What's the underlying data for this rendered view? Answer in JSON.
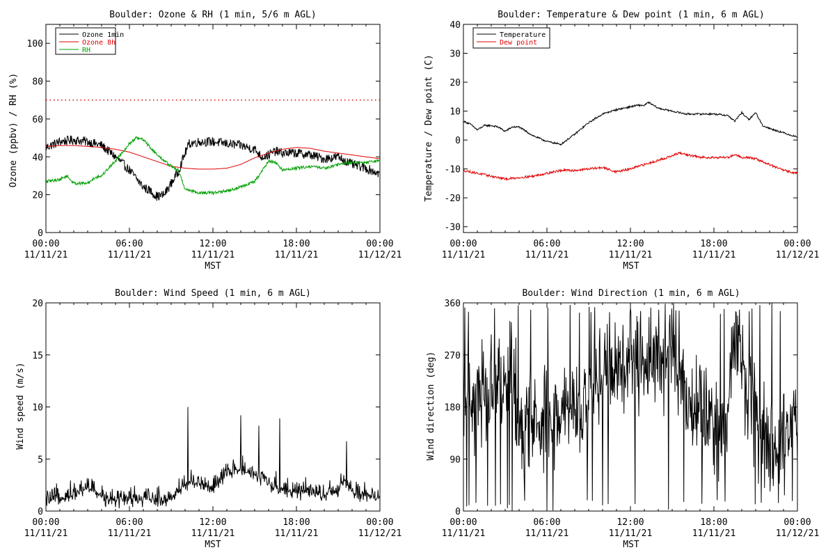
{
  "colors": {
    "black": "#000000",
    "red": "#e00000",
    "green": "#00a000"
  },
  "x_ticks": [
    {
      "hour": 0,
      "time": "00:00",
      "date": "11/11/21"
    },
    {
      "hour": 6,
      "time": "06:00",
      "date": "11/11/21"
    },
    {
      "hour": 12,
      "time": "12:00",
      "date": "11/11/21"
    },
    {
      "hour": 18,
      "time": "18:00",
      "date": "11/11/21"
    },
    {
      "hour": 24,
      "time": "00:00",
      "date": "11/12/21"
    }
  ],
  "chart_data": [
    {
      "id": "ozone",
      "type": "line",
      "title": "Boulder: Ozone & RH (1 min, 5/6 m AGL)",
      "ylabel": "Ozone (ppbv) / RH (%)",
      "xlabel": "MST",
      "xlim": [
        0,
        24
      ],
      "ylim": [
        0,
        110
      ],
      "yticks": [
        0,
        20,
        40,
        60,
        80,
        100
      ],
      "reference_line": {
        "y": 70,
        "color": "#e00000",
        "style": "dotted"
      },
      "legend": "top-left",
      "legend_entries": [
        "Ozone 1min",
        "Ozone 8h",
        "RH"
      ],
      "series": [
        {
          "name": "Ozone 1min",
          "color": "#000000",
          "noise": 2.5,
          "x": [
            0,
            1,
            2,
            3,
            4,
            5,
            6,
            7,
            7.5,
            8,
            8.5,
            9,
            9.5,
            10,
            10.3,
            11,
            12,
            13,
            14,
            15,
            15.5,
            16,
            16.5,
            17,
            18,
            19,
            20,
            21,
            22,
            23,
            24
          ],
          "y": [
            45,
            48,
            49,
            48,
            46,
            40,
            33,
            24,
            22,
            19,
            20,
            26,
            32,
            42,
            47,
            48,
            48,
            47,
            46,
            44,
            40,
            41,
            43,
            42,
            42,
            41,
            39,
            40,
            36,
            34,
            31
          ]
        },
        {
          "name": "Ozone 8h",
          "color": "#e00000",
          "noise": 0,
          "x": [
            0,
            1,
            2,
            3,
            4,
            5,
            6,
            7,
            8,
            9,
            10,
            11,
            12,
            13,
            14,
            15,
            16,
            17,
            18,
            19,
            20,
            21,
            22,
            23,
            24
          ],
          "y": [
            45.5,
            46,
            46,
            45.5,
            45,
            44,
            42.5,
            40,
            37.5,
            35,
            34,
            33.5,
            33.5,
            34,
            36,
            39.5,
            42,
            44,
            45,
            44.5,
            43,
            42,
            41,
            40,
            39
          ]
        },
        {
          "name": "RH",
          "color": "#00a000",
          "noise": 0.8,
          "x": [
            0,
            1,
            1.5,
            2,
            3,
            3.5,
            4,
            5,
            6,
            6.5,
            7,
            7.5,
            8,
            9,
            9.5,
            10,
            11,
            12,
            13,
            14,
            15,
            15.5,
            16,
            16.5,
            17,
            18,
            19,
            20,
            21,
            22,
            23,
            24
          ],
          "y": [
            27,
            28,
            30,
            26,
            26,
            29,
            30,
            38,
            47,
            50,
            49,
            45,
            41,
            35,
            33,
            23,
            21,
            21,
            22,
            24,
            27,
            32,
            38,
            37,
            33,
            34,
            35,
            34,
            36,
            37,
            37,
            38
          ]
        }
      ]
    },
    {
      "id": "temperature",
      "type": "line",
      "title": "Boulder: Temperature & Dew point (1 min, 6 m AGL)",
      "ylabel": "Temperature / Dew point (C)",
      "xlabel": "MST",
      "xlim": [
        0,
        24
      ],
      "ylim": [
        -32,
        40
      ],
      "yticks": [
        -30,
        -20,
        -10,
        0,
        10,
        20,
        30,
        40
      ],
      "legend": "top-left",
      "legend_entries": [
        "Temperature",
        "Dew point"
      ],
      "series": [
        {
          "name": "Temperature",
          "color": "#000000",
          "noise": 0.3,
          "x": [
            0,
            0.5,
            1,
            1.5,
            2,
            2.5,
            3,
            3.5,
            4,
            5,
            6,
            7,
            8,
            9,
            10,
            11,
            12,
            12.5,
            13,
            13.3,
            14,
            15,
            16,
            17,
            18,
            19,
            19.5,
            20,
            20.5,
            21,
            21.5,
            22,
            23,
            24
          ],
          "y": [
            6.5,
            5.5,
            3.5,
            5,
            5,
            4.5,
            3,
            4.5,
            4.5,
            1.5,
            -0.5,
            -1.5,
            2,
            6,
            9,
            10.5,
            11.5,
            12,
            12,
            13,
            11,
            10,
            9,
            9,
            9,
            8.5,
            6.5,
            9.5,
            7,
            9.5,
            5,
            4,
            2.5,
            1
          ]
        },
        {
          "name": "Dew point",
          "color": "#e00000",
          "noise": 0.4,
          "x": [
            0,
            1,
            2,
            3,
            4,
            5,
            6,
            7,
            8,
            9,
            10,
            11,
            12,
            13,
            14,
            15,
            15.5,
            16,
            17,
            18,
            19,
            19.5,
            20,
            20.5,
            21,
            22,
            23,
            24
          ],
          "y": [
            -10.5,
            -11.5,
            -12.5,
            -13.5,
            -13,
            -12.5,
            -11.5,
            -10.5,
            -10.5,
            -10,
            -9.5,
            -11,
            -10,
            -8.5,
            -7,
            -5.5,
            -4.5,
            -5,
            -6,
            -6,
            -6,
            -5,
            -6,
            -6,
            -6.5,
            -8.5,
            -10.5,
            -11.5
          ]
        }
      ]
    },
    {
      "id": "windspeed",
      "type": "line",
      "title": "Boulder: Wind Speed (1 min, 6 m AGL)",
      "ylabel": "Wind speed (m/s)",
      "xlabel": "MST",
      "xlim": [
        0,
        24
      ],
      "ylim": [
        0,
        20
      ],
      "yticks": [
        0,
        5,
        10,
        15,
        20
      ],
      "legend": "none",
      "series": [
        {
          "name": "Wind speed",
          "color": "#000000",
          "noise": 1.3,
          "x": [
            0,
            1,
            2,
            3,
            4,
            5,
            6,
            7,
            8,
            9,
            10,
            11,
            12,
            13,
            14,
            15,
            16,
            17,
            18,
            19,
            20,
            21,
            21.5,
            22,
            23,
            24
          ],
          "y": [
            0.7,
            1.2,
            1.5,
            2.2,
            1.3,
            1,
            1.1,
            1,
            1,
            1.1,
            2.5,
            2.7,
            2,
            3.5,
            4,
            3.5,
            2.5,
            2,
            1.8,
            1.6,
            1.5,
            1.7,
            3,
            1.6,
            1.4,
            1.2
          ],
          "spikes": [
            {
              "x": 10.2,
              "y": 10
            },
            {
              "x": 14,
              "y": 9.2
            },
            {
              "x": 16.8,
              "y": 8.9
            },
            {
              "x": 21.6,
              "y": 6.7
            },
            {
              "x": 15.3,
              "y": 8.2
            }
          ]
        }
      ]
    },
    {
      "id": "winddir",
      "type": "line",
      "title": "Boulder: Wind Direction (1 min, 6 m AGL)",
      "ylabel": "Wind direction (deg)",
      "xlabel": "MST",
      "xlim": [
        0,
        24
      ],
      "ylim": [
        0,
        360
      ],
      "yticks": [
        0,
        90,
        180,
        270,
        360
      ],
      "legend": "none",
      "series": [
        {
          "name": "Wind direction",
          "color": "#000000",
          "noise": 80,
          "x": [
            0,
            1,
            2,
            3,
            3.5,
            4,
            5,
            6,
            7,
            8,
            9,
            10,
            11,
            12,
            13,
            14,
            15,
            16,
            17,
            18,
            19,
            19.5,
            20,
            21,
            22,
            23,
            23.5,
            24
          ],
          "y": [
            200,
            190,
            220,
            230,
            260,
            130,
            150,
            170,
            160,
            170,
            170,
            230,
            250,
            250,
            260,
            265,
            270,
            200,
            180,
            140,
            160,
            320,
            250,
            160,
            100,
            110,
            160,
            150
          ]
        }
      ]
    }
  ]
}
